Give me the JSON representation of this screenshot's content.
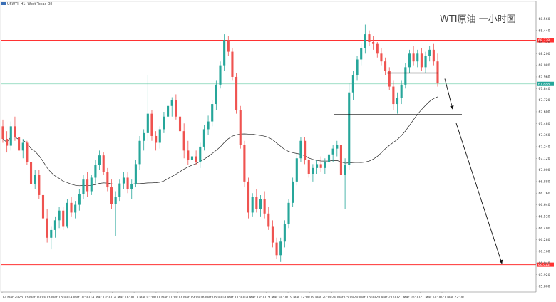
{
  "header": {
    "symbol_text": "USWTI, H1: West Texas Oil"
  },
  "chart_data": {
    "type": "candlestick",
    "title": "WTI原油 一小时图",
    "ylim": [
      65.74,
      68.68
    ],
    "y_ticks": [
      "68.560",
      "68.440",
      "68.320",
      "68.200",
      "68.080",
      "67.960",
      "67.840",
      "67.720",
      "67.600",
      "67.480",
      "67.360",
      "67.240",
      "67.120",
      "67.000",
      "66.880",
      "66.760",
      "66.640",
      "66.520",
      "66.400",
      "66.280",
      "66.160",
      "66.040",
      "65.920",
      "65.800"
    ],
    "x_ticks": [
      "12 Mar 2025",
      "13 Mar 10:00",
      "13 Mar 18:00",
      "14 Mar 02:00",
      "14 Mar 10:00",
      "14 Mar 18:00",
      "17 Mar 03:00",
      "17 Mar 11:00",
      "17 Mar 19:00",
      "18 Mar 03:00",
      "18 Mar 11:00",
      "18 Mar 19:00",
      "19 Mar 04:00",
      "19 Mar 12:00",
      "19 Mar 20:00",
      "20 Mar 05:00",
      "20 Mar 13:00",
      "20 Mar 21:00",
      "21 Mar 06:00",
      "21 Mar 14:00",
      "21 Mar 22:00"
    ],
    "colors": {
      "up": "#26a69a",
      "down": "#ef5350",
      "ma": "#222222",
      "resistance": "#ff3333",
      "support": "#ff3333",
      "current": "#7fd3b3",
      "neck": "#111111",
      "arrow": "#111111"
    },
    "levels": {
      "resistance": {
        "value": 68.338,
        "label": "68.338"
      },
      "current": {
        "value": 67.888,
        "label": "67.888"
      },
      "support": {
        "value": 66.022,
        "label": "66.022"
      },
      "neckline_upper": 68.0,
      "neckline_lower": 67.57
    },
    "candles": [
      [
        67.45,
        67.52,
        67.28,
        67.32
      ],
      [
        67.32,
        67.4,
        67.18,
        67.25
      ],
      [
        67.25,
        67.5,
        67.2,
        67.45
      ],
      [
        67.45,
        67.55,
        67.3,
        67.34
      ],
      [
        67.34,
        67.38,
        67.15,
        67.2
      ],
      [
        67.2,
        67.32,
        67.12,
        67.28
      ],
      [
        67.28,
        67.3,
        67.05,
        67.08
      ],
      [
        67.08,
        67.12,
        66.78,
        66.85
      ],
      [
        66.85,
        67.0,
        66.8,
        66.95
      ],
      [
        66.95,
        67.0,
        66.7,
        66.74
      ],
      [
        66.74,
        66.8,
        66.45,
        66.5
      ],
      [
        66.5,
        66.6,
        66.25,
        66.3
      ],
      [
        66.3,
        66.42,
        66.18,
        66.38
      ],
      [
        66.38,
        66.52,
        66.3,
        66.48
      ],
      [
        66.48,
        66.62,
        66.4,
        66.58
      ],
      [
        66.58,
        66.62,
        66.38,
        66.42
      ],
      [
        66.42,
        66.7,
        66.4,
        66.66
      ],
      [
        66.66,
        66.72,
        66.52,
        66.56
      ],
      [
        66.56,
        66.68,
        66.5,
        66.64
      ],
      [
        66.64,
        66.8,
        66.58,
        66.75
      ],
      [
        66.75,
        66.95,
        66.7,
        66.9
      ],
      [
        66.9,
        66.98,
        66.72,
        66.78
      ],
      [
        66.78,
        66.95,
        66.74,
        66.92
      ],
      [
        66.92,
        67.1,
        66.86,
        67.05
      ],
      [
        67.05,
        67.2,
        67.0,
        67.15
      ],
      [
        67.15,
        67.18,
        66.95,
        66.98
      ],
      [
        66.98,
        67.02,
        66.78,
        66.82
      ],
      [
        66.82,
        66.9,
        66.6,
        66.65
      ],
      [
        66.65,
        66.78,
        66.32,
        66.72
      ],
      [
        66.72,
        66.9,
        66.68,
        66.86
      ],
      [
        66.86,
        66.98,
        66.8,
        66.92
      ],
      [
        66.92,
        66.98,
        66.76,
        66.8
      ],
      [
        66.8,
        66.9,
        66.7,
        66.85
      ],
      [
        66.85,
        67.1,
        66.82,
        67.06
      ],
      [
        67.06,
        67.35,
        67.0,
        67.3
      ],
      [
        67.3,
        67.42,
        67.2,
        67.38
      ],
      [
        67.38,
        67.98,
        67.3,
        67.58
      ],
      [
        67.58,
        67.62,
        67.3,
        67.35
      ],
      [
        67.35,
        67.4,
        67.2,
        67.28
      ],
      [
        67.28,
        67.45,
        67.22,
        67.42
      ],
      [
        67.42,
        67.6,
        67.38,
        67.55
      ],
      [
        67.55,
        67.7,
        67.5,
        67.66
      ],
      [
        67.66,
        67.75,
        67.55,
        67.72
      ],
      [
        67.72,
        67.78,
        67.52,
        67.55
      ],
      [
        67.55,
        67.6,
        67.35,
        67.4
      ],
      [
        67.4,
        67.48,
        67.12,
        67.2
      ],
      [
        67.2,
        67.3,
        67.05,
        67.1
      ],
      [
        67.1,
        67.18,
        66.98,
        67.14
      ],
      [
        67.14,
        67.2,
        67.05,
        67.08
      ],
      [
        67.08,
        67.28,
        67.02,
        67.24
      ],
      [
        67.24,
        67.46,
        67.2,
        67.42
      ],
      [
        67.42,
        67.56,
        67.36,
        67.5
      ],
      [
        67.5,
        67.72,
        67.45,
        67.68
      ],
      [
        67.68,
        67.92,
        67.62,
        67.88
      ],
      [
        67.88,
        68.12,
        67.84,
        68.08
      ],
      [
        68.08,
        68.4,
        68.02,
        68.34
      ],
      [
        68.34,
        68.38,
        68.18,
        68.22
      ],
      [
        68.22,
        68.26,
        67.92,
        67.96
      ],
      [
        67.96,
        68.0,
        67.58,
        67.62
      ],
      [
        67.62,
        67.66,
        67.22,
        67.26
      ],
      [
        67.26,
        67.3,
        66.82,
        66.88
      ],
      [
        66.88,
        66.92,
        66.5,
        66.56
      ],
      [
        66.56,
        66.76,
        66.52,
        66.72
      ],
      [
        66.72,
        66.8,
        66.56,
        66.6
      ],
      [
        66.6,
        66.74,
        66.52,
        66.7
      ],
      [
        66.7,
        66.78,
        66.5,
        66.55
      ],
      [
        66.55,
        66.62,
        66.38,
        66.42
      ],
      [
        66.42,
        66.48,
        66.2,
        66.25
      ],
      [
        66.25,
        66.3,
        66.08,
        66.12
      ],
      [
        66.12,
        66.3,
        66.05,
        66.26
      ],
      [
        66.26,
        66.48,
        66.2,
        66.44
      ],
      [
        66.44,
        66.7,
        66.4,
        66.66
      ],
      [
        66.66,
        66.92,
        66.62,
        66.88
      ],
      [
        66.88,
        67.18,
        66.84,
        67.12
      ],
      [
        67.12,
        67.34,
        67.08,
        67.3
      ],
      [
        67.3,
        67.34,
        67.06,
        67.1
      ],
      [
        67.1,
        67.14,
        66.92,
        66.96
      ],
      [
        66.96,
        67.06,
        66.88,
        67.02
      ],
      [
        67.02,
        67.1,
        66.96,
        67.06
      ],
      [
        67.06,
        67.14,
        66.98,
        67.02
      ],
      [
        67.02,
        67.12,
        66.96,
        67.08
      ],
      [
        67.08,
        67.2,
        67.02,
        67.16
      ],
      [
        67.16,
        67.26,
        67.08,
        67.22
      ],
      [
        67.22,
        67.3,
        67.14,
        67.26
      ],
      [
        67.26,
        67.3,
        66.92,
        66.95
      ],
      [
        66.95,
        67.12,
        66.6,
        67.05
      ],
      [
        67.05,
        67.9,
        67.0,
        67.8
      ],
      [
        67.8,
        68.02,
        67.72,
        67.98
      ],
      [
        67.98,
        68.18,
        67.92,
        68.14
      ],
      [
        68.14,
        68.3,
        68.08,
        68.26
      ],
      [
        68.26,
        68.5,
        68.2,
        68.4
      ],
      [
        68.4,
        68.44,
        68.28,
        68.32
      ],
      [
        68.32,
        68.38,
        68.24,
        68.3
      ],
      [
        68.3,
        68.32,
        68.16,
        68.2
      ],
      [
        68.2,
        68.26,
        68.08,
        68.12
      ],
      [
        68.12,
        68.16,
        67.98,
        68.02
      ],
      [
        68.02,
        68.06,
        67.82,
        67.86
      ],
      [
        67.86,
        67.92,
        67.62,
        67.68
      ],
      [
        67.68,
        67.8,
        67.58,
        67.74
      ],
      [
        67.74,
        67.92,
        67.68,
        67.88
      ],
      [
        67.88,
        68.1,
        67.84,
        68.06
      ],
      [
        68.06,
        68.24,
        68.0,
        68.2
      ],
      [
        68.2,
        68.28,
        68.08,
        68.12
      ],
      [
        68.12,
        68.24,
        68.06,
        68.2
      ],
      [
        68.2,
        68.26,
        68.02,
        68.06
      ],
      [
        68.06,
        68.22,
        68.0,
        68.18
      ],
      [
        68.18,
        68.28,
        68.12,
        68.24
      ],
      [
        68.24,
        68.3,
        68.08,
        68.12
      ],
      [
        68.12,
        68.2,
        67.86,
        67.9
      ]
    ]
  }
}
